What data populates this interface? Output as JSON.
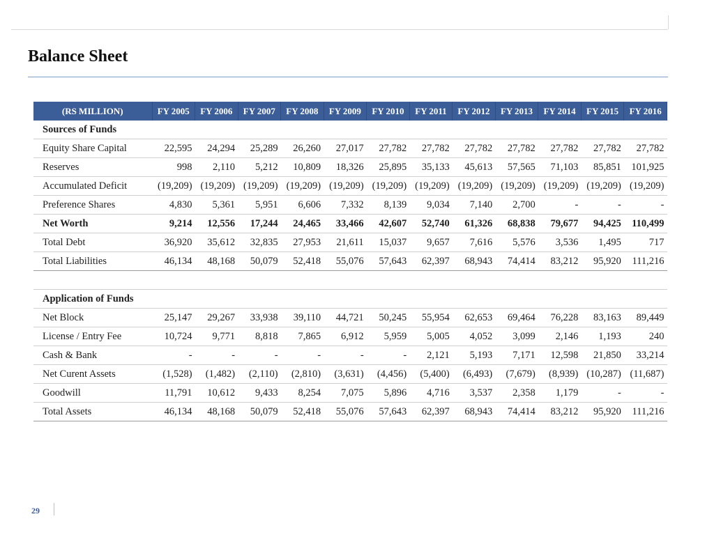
{
  "title": "Balance Sheet",
  "page_number": "29",
  "table": {
    "header": [
      "(RS MILLION)",
      "FY 2005",
      "FY 2006",
      "FY 2007",
      "FY 2008",
      "FY 2009",
      "FY 2010",
      "FY 2011",
      "FY 2012",
      "FY 2013",
      "FY 2014",
      "FY 2015",
      "FY 2016"
    ],
    "rows": [
      {
        "kind": "section",
        "label": "Sources of Funds",
        "values": []
      },
      {
        "kind": "normal",
        "label": "Equity Share Capital",
        "values": [
          "22,595",
          "24,294",
          "25,289",
          "26,260",
          "27,017",
          "27,782",
          "27,782",
          "27,782",
          "27,782",
          "27,782",
          "27,782",
          "27,782"
        ]
      },
      {
        "kind": "normal",
        "label": "Reserves",
        "values": [
          "998",
          "2,110",
          "5,212",
          "10,809",
          "18,326",
          "25,895",
          "35,133",
          "45,613",
          "57,565",
          "71,103",
          "85,851",
          "101,925"
        ]
      },
      {
        "kind": "normal",
        "label": "Accumulated Deficit",
        "values": [
          "(19,209)",
          "(19,209)",
          "(19,209)",
          "(19,209)",
          "(19,209)",
          "(19,209)",
          "(19,209)",
          "(19,209)",
          "(19,209)",
          "(19,209)",
          "(19,209)",
          "(19,209)"
        ]
      },
      {
        "kind": "normal",
        "label": "Preference Shares",
        "values": [
          "4,830",
          "5,361",
          "5,951",
          "6,606",
          "7,332",
          "8,139",
          "9,034",
          "7,140",
          "2,700",
          "-",
          "-",
          "-"
        ]
      },
      {
        "kind": "bold",
        "label": "Net Worth",
        "values": [
          "9,214",
          "12,556",
          "17,244",
          "24,465",
          "33,466",
          "42,607",
          "52,740",
          "61,326",
          "68,838",
          "79,677",
          "94,425",
          "110,499"
        ]
      },
      {
        "kind": "normal",
        "label": "Total Debt",
        "values": [
          "36,920",
          "35,612",
          "32,835",
          "27,953",
          "21,611",
          "15,037",
          "9,657",
          "7,616",
          "5,576",
          "3,536",
          "1,495",
          "717"
        ]
      },
      {
        "kind": "total",
        "label": "Total Liabilities",
        "values": [
          "46,134",
          "48,168",
          "50,079",
          "52,418",
          "55,076",
          "57,643",
          "62,397",
          "68,943",
          "74,414",
          "83,212",
          "95,920",
          "111,216"
        ]
      },
      {
        "kind": "spacer",
        "label": "",
        "values": []
      },
      {
        "kind": "section",
        "label": "Application of Funds",
        "values": []
      },
      {
        "kind": "normal",
        "label": "Net Block",
        "values": [
          "25,147",
          "29,267",
          "33,938",
          "39,110",
          "44,721",
          "50,245",
          "55,954",
          "62,653",
          "69,464",
          "76,228",
          "83,163",
          "89,449"
        ]
      },
      {
        "kind": "normal",
        "label": "License / Entry Fee",
        "values": [
          "10,724",
          "9,771",
          "8,818",
          "7,865",
          "6,912",
          "5,959",
          "5,005",
          "4,052",
          "3,099",
          "2,146",
          "1,193",
          "240"
        ]
      },
      {
        "kind": "normal",
        "label": "Cash & Bank",
        "values": [
          "-",
          "-",
          "-",
          "-",
          "-",
          "-",
          "2,121",
          "5,193",
          "7,171",
          "12,598",
          "21,850",
          "33,214"
        ]
      },
      {
        "kind": "normal",
        "label": "Net Curent Assets",
        "values": [
          "(1,528)",
          "(1,482)",
          "(2,110)",
          "(2,810)",
          "(3,631)",
          "(4,456)",
          "(5,400)",
          "(6,493)",
          "(7,679)",
          "(8,939)",
          "(10,287)",
          "(11,687)"
        ]
      },
      {
        "kind": "normal",
        "label": "Goodwill",
        "values": [
          "11,791",
          "10,612",
          "9,433",
          "8,254",
          "7,075",
          "5,896",
          "4,716",
          "3,537",
          "2,358",
          "1,179",
          "-",
          "-"
        ]
      },
      {
        "kind": "total",
        "label": "Total Assets",
        "values": [
          "46,134",
          "48,168",
          "50,079",
          "52,418",
          "55,076",
          "57,643",
          "62,397",
          "68,943",
          "74,414",
          "83,212",
          "95,920",
          "111,216"
        ]
      }
    ]
  }
}
